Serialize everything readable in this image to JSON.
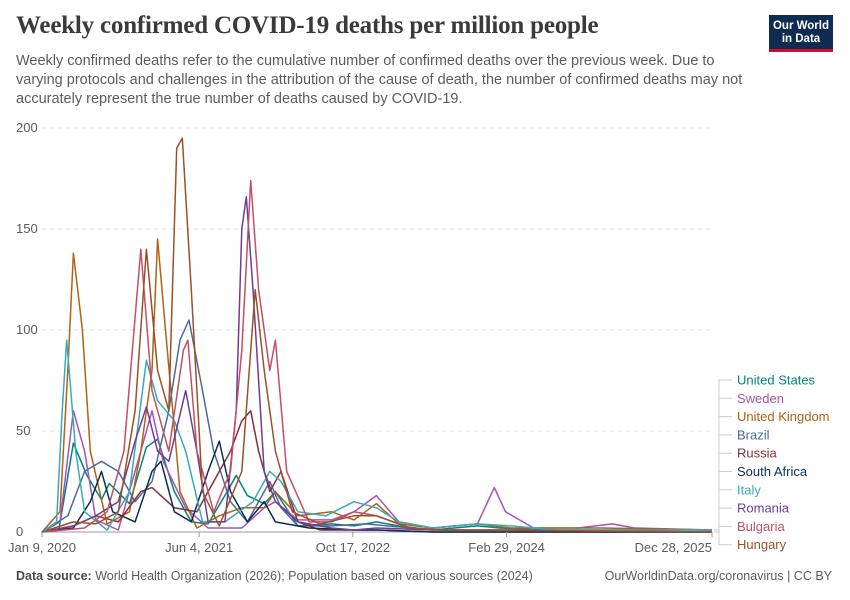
{
  "header": {
    "title": "Weekly confirmed COVID-19 deaths per million people",
    "subtitle": "Weekly confirmed deaths refer to the cumulative number of confirmed deaths over the previous week. Due to varying protocols and challenges in the attribution of the cause of death, the number of confirmed deaths may not accurately represent the true number of deaths caused by COVID-19."
  },
  "logo": {
    "line1": "Our World",
    "line2": "in Data",
    "bg": "#0f2b52",
    "accent": "#c8102e"
  },
  "footer": {
    "source_label": "Data source:",
    "source_text": "World Health Organization (2026); Population based on various sources (2024)",
    "right_text": "OurWorldinData.org/coronavirus | CC BY"
  },
  "chart_data": {
    "type": "line",
    "title": "",
    "xlabel": "",
    "ylabel": "",
    "ylim": [
      0,
      200
    ],
    "y_ticks": [
      "0",
      "50",
      "100",
      "150",
      "200"
    ],
    "x_ticks": [
      "Jan 9, 2020",
      "Jun 4, 2021",
      "Oct 17, 2022",
      "Feb 29, 2024",
      "Dec 28, 2025"
    ],
    "x_tick_positions": [
      2020.02,
      2021.42,
      2022.79,
      2024.16,
      2025.99
    ],
    "x_range": [
      2020.02,
      2025.99
    ],
    "grid": true,
    "legend_position": "right",
    "series": [
      {
        "name": "United States",
        "color": "#00847e",
        "points": [
          [
            2020.02,
            0
          ],
          [
            2020.17,
            1
          ],
          [
            2020.3,
            44
          ],
          [
            2020.42,
            28
          ],
          [
            2020.55,
            16
          ],
          [
            2020.62,
            24
          ],
          [
            2020.8,
            14
          ],
          [
            2020.95,
            42
          ],
          [
            2021.05,
            46
          ],
          [
            2021.2,
            20
          ],
          [
            2021.35,
            5
          ],
          [
            2021.5,
            4
          ],
          [
            2021.67,
            20
          ],
          [
            2021.75,
            28
          ],
          [
            2021.85,
            18
          ],
          [
            2022.0,
            14
          ],
          [
            2022.1,
            20
          ],
          [
            2022.3,
            3
          ],
          [
            2022.6,
            4
          ],
          [
            2022.8,
            3
          ],
          [
            2023.0,
            5
          ],
          [
            2023.2,
            3
          ],
          [
            2023.5,
            1
          ],
          [
            2023.9,
            3
          ],
          [
            2024.1,
            2
          ],
          [
            2024.5,
            1
          ],
          [
            2024.9,
            1
          ],
          [
            2025.3,
            1
          ],
          [
            2025.99,
            1
          ]
        ]
      },
      {
        "name": "Sweden",
        "color": "#a652ba",
        "points": [
          [
            2020.02,
            0
          ],
          [
            2020.18,
            5
          ],
          [
            2020.3,
            60
          ],
          [
            2020.4,
            40
          ],
          [
            2020.5,
            6
          ],
          [
            2020.7,
            1
          ],
          [
            2020.9,
            40
          ],
          [
            2021.0,
            60
          ],
          [
            2021.1,
            35
          ],
          [
            2021.3,
            12
          ],
          [
            2021.5,
            2
          ],
          [
            2021.8,
            2
          ],
          [
            2022.0,
            12
          ],
          [
            2022.1,
            15
          ],
          [
            2022.3,
            6
          ],
          [
            2022.6,
            6
          ],
          [
            2022.8,
            10
          ],
          [
            2023.0,
            18
          ],
          [
            2023.2,
            5
          ],
          [
            2023.5,
            2
          ],
          [
            2023.9,
            4
          ],
          [
            2024.05,
            22
          ],
          [
            2024.15,
            10
          ],
          [
            2024.4,
            2
          ],
          [
            2024.8,
            2
          ],
          [
            2025.1,
            4
          ],
          [
            2025.3,
            2
          ],
          [
            2025.99,
            1
          ]
        ]
      },
      {
        "name": "United Kingdom",
        "color": "#b16214",
        "points": [
          [
            2020.02,
            0
          ],
          [
            2020.18,
            10
          ],
          [
            2020.25,
            80
          ],
          [
            2020.3,
            138
          ],
          [
            2020.38,
            100
          ],
          [
            2020.45,
            40
          ],
          [
            2020.6,
            4
          ],
          [
            2020.8,
            10
          ],
          [
            2020.9,
            40
          ],
          [
            2021.0,
            80
          ],
          [
            2021.05,
            145
          ],
          [
            2021.12,
            100
          ],
          [
            2021.25,
            20
          ],
          [
            2021.4,
            2
          ],
          [
            2021.6,
            8
          ],
          [
            2021.8,
            12
          ],
          [
            2022.0,
            12
          ],
          [
            2022.1,
            20
          ],
          [
            2022.3,
            8
          ],
          [
            2022.6,
            10
          ],
          [
            2022.8,
            6
          ],
          [
            2023.0,
            14
          ],
          [
            2023.2,
            4
          ],
          [
            2023.5,
            2
          ],
          [
            2023.9,
            4
          ],
          [
            2024.2,
            2
          ],
          [
            2024.6,
            2
          ],
          [
            2025.0,
            2
          ],
          [
            2025.99,
            1
          ]
        ]
      },
      {
        "name": "Brazil",
        "color": "#4c6a9c",
        "points": [
          [
            2020.02,
            0
          ],
          [
            2020.25,
            8
          ],
          [
            2020.4,
            30
          ],
          [
            2020.55,
            35
          ],
          [
            2020.7,
            30
          ],
          [
            2020.85,
            15
          ],
          [
            2021.0,
            25
          ],
          [
            2021.15,
            60
          ],
          [
            2021.25,
            95
          ],
          [
            2021.33,
            105
          ],
          [
            2021.45,
            70
          ],
          [
            2021.55,
            40
          ],
          [
            2021.7,
            15
          ],
          [
            2021.85,
            5
          ],
          [
            2022.05,
            25
          ],
          [
            2022.15,
            12
          ],
          [
            2022.3,
            3
          ],
          [
            2022.6,
            3
          ],
          [
            2022.9,
            4
          ],
          [
            2023.1,
            3
          ],
          [
            2023.5,
            1
          ],
          [
            2024.0,
            1
          ],
          [
            2024.5,
            1
          ],
          [
            2025.0,
            0
          ],
          [
            2025.99,
            0
          ]
        ]
      },
      {
        "name": "Russia",
        "color": "#883039",
        "points": [
          [
            2020.02,
            0
          ],
          [
            2020.3,
            3
          ],
          [
            2020.5,
            8
          ],
          [
            2020.7,
            5
          ],
          [
            2020.9,
            20
          ],
          [
            2021.0,
            22
          ],
          [
            2021.2,
            12
          ],
          [
            2021.4,
            10
          ],
          [
            2021.55,
            25
          ],
          [
            2021.7,
            40
          ],
          [
            2021.8,
            55
          ],
          [
            2021.88,
            60
          ],
          [
            2021.95,
            40
          ],
          [
            2022.05,
            20
          ],
          [
            2022.15,
            30
          ],
          [
            2022.3,
            5
          ],
          [
            2022.5,
            1
          ],
          [
            2022.8,
            1
          ],
          [
            2023.0,
            1
          ],
          [
            2023.5,
            0
          ],
          [
            2025.99,
            0
          ]
        ]
      },
      {
        "name": "South Africa",
        "color": "#0a2f51",
        "points": [
          [
            2020.02,
            0
          ],
          [
            2020.3,
            2
          ],
          [
            2020.45,
            15
          ],
          [
            2020.55,
            30
          ],
          [
            2020.65,
            10
          ],
          [
            2020.85,
            5
          ],
          [
            2021.0,
            30
          ],
          [
            2021.08,
            35
          ],
          [
            2021.2,
            10
          ],
          [
            2021.35,
            5
          ],
          [
            2021.5,
            30
          ],
          [
            2021.6,
            45
          ],
          [
            2021.7,
            20
          ],
          [
            2021.85,
            5
          ],
          [
            2022.0,
            15
          ],
          [
            2022.1,
            5
          ],
          [
            2022.4,
            2
          ],
          [
            2022.8,
            1
          ],
          [
            2023.0,
            1
          ],
          [
            2023.5,
            0
          ],
          [
            2025.99,
            0
          ]
        ]
      },
      {
        "name": "Italy",
        "color": "#38aaba",
        "points": [
          [
            2020.02,
            0
          ],
          [
            2020.15,
            5
          ],
          [
            2020.2,
            60
          ],
          [
            2020.24,
            95
          ],
          [
            2020.32,
            40
          ],
          [
            2020.4,
            10
          ],
          [
            2020.6,
            1
          ],
          [
            2020.8,
            20
          ],
          [
            2020.95,
            85
          ],
          [
            2021.05,
            65
          ],
          [
            2021.2,
            55
          ],
          [
            2021.3,
            40
          ],
          [
            2021.45,
            5
          ],
          [
            2021.65,
            5
          ],
          [
            2021.9,
            15
          ],
          [
            2022.05,
            30
          ],
          [
            2022.15,
            25
          ],
          [
            2022.3,
            10
          ],
          [
            2022.55,
            8
          ],
          [
            2022.8,
            15
          ],
          [
            2023.0,
            12
          ],
          [
            2023.2,
            5
          ],
          [
            2023.5,
            2
          ],
          [
            2023.9,
            4
          ],
          [
            2024.2,
            3
          ],
          [
            2024.6,
            1
          ],
          [
            2025.0,
            1
          ],
          [
            2025.99,
            1
          ]
        ]
      },
      {
        "name": "Romania",
        "color": "#6d3e91",
        "points": [
          [
            2020.02,
            0
          ],
          [
            2020.3,
            3
          ],
          [
            2020.5,
            8
          ],
          [
            2020.7,
            15
          ],
          [
            2020.85,
            45
          ],
          [
            2020.95,
            62
          ],
          [
            2021.05,
            40
          ],
          [
            2021.15,
            35
          ],
          [
            2021.3,
            70
          ],
          [
            2021.4,
            40
          ],
          [
            2021.5,
            5
          ],
          [
            2021.65,
            5
          ],
          [
            2021.75,
            60
          ],
          [
            2021.8,
            150
          ],
          [
            2021.84,
            166
          ],
          [
            2021.9,
            120
          ],
          [
            2022.0,
            30
          ],
          [
            2022.1,
            15
          ],
          [
            2022.3,
            5
          ],
          [
            2022.6,
            2
          ],
          [
            2022.8,
            1
          ],
          [
            2023.0,
            2
          ],
          [
            2023.5,
            1
          ],
          [
            2025.99,
            0
          ]
        ]
      },
      {
        "name": "Bulgaria",
        "color": "#c15065",
        "points": [
          [
            2020.02,
            0
          ],
          [
            2020.4,
            2
          ],
          [
            2020.6,
            10
          ],
          [
            2020.75,
            40
          ],
          [
            2020.9,
            140
          ],
          [
            2021.0,
            70
          ],
          [
            2021.15,
            40
          ],
          [
            2021.28,
            90
          ],
          [
            2021.32,
            95
          ],
          [
            2021.4,
            40
          ],
          [
            2021.55,
            10
          ],
          [
            2021.7,
            30
          ],
          [
            2021.8,
            90
          ],
          [
            2021.88,
            174
          ],
          [
            2021.95,
            120
          ],
          [
            2022.05,
            80
          ],
          [
            2022.1,
            95
          ],
          [
            2022.2,
            30
          ],
          [
            2022.4,
            5
          ],
          [
            2022.6,
            5
          ],
          [
            2022.8,
            10
          ],
          [
            2023.0,
            8
          ],
          [
            2023.3,
            2
          ],
          [
            2023.6,
            1
          ],
          [
            2024.0,
            1
          ],
          [
            2025.99,
            0
          ]
        ]
      },
      {
        "name": "Hungary",
        "color": "#9a5129",
        "points": [
          [
            2020.02,
            0
          ],
          [
            2020.3,
            5
          ],
          [
            2020.5,
            4
          ],
          [
            2020.7,
            10
          ],
          [
            2020.85,
            60
          ],
          [
            2020.95,
            140
          ],
          [
            2021.05,
            80
          ],
          [
            2021.15,
            60
          ],
          [
            2021.22,
            190
          ],
          [
            2021.27,
            195
          ],
          [
            2021.35,
            120
          ],
          [
            2021.45,
            20
          ],
          [
            2021.6,
            3
          ],
          [
            2021.8,
            30
          ],
          [
            2021.92,
            120
          ],
          [
            2022.0,
            80
          ],
          [
            2022.1,
            40
          ],
          [
            2022.25,
            10
          ],
          [
            2022.5,
            4
          ],
          [
            2022.8,
            8
          ],
          [
            2023.0,
            8
          ],
          [
            2023.3,
            2
          ],
          [
            2023.6,
            1
          ],
          [
            2024.0,
            1
          ],
          [
            2025.99,
            0
          ]
        ]
      }
    ]
  }
}
